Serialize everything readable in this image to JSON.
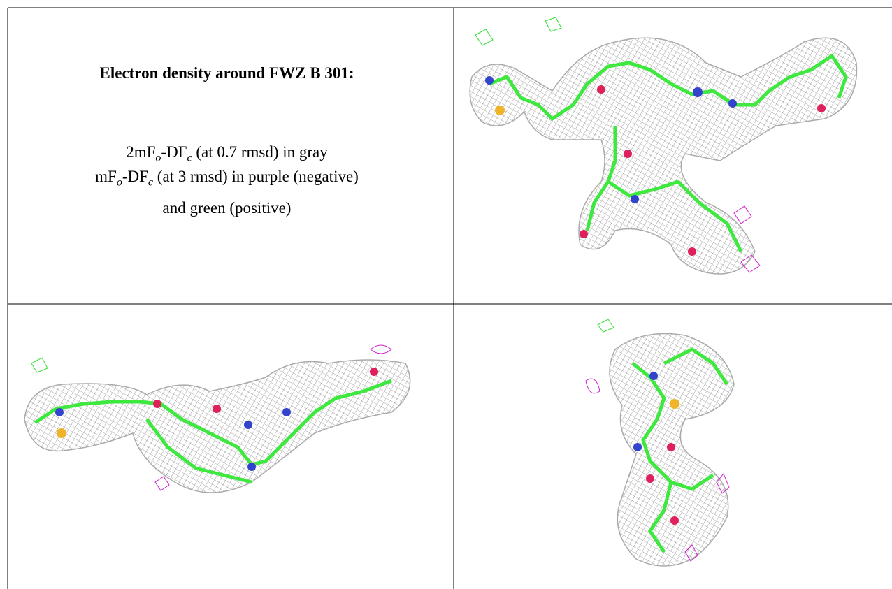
{
  "header": {
    "title": "Electron density around FWZ B 301:"
  },
  "legend": {
    "lines": [
      [
        "2mF",
        "o",
        "-DF",
        "c",
        " (at 0.7 rmsd) in gray"
      ],
      [
        "mF",
        "o",
        "-DF",
        "c",
        " (at 3 rmsd) in purple (negative)"
      ],
      [
        "and green (positive)"
      ]
    ]
  }
}
